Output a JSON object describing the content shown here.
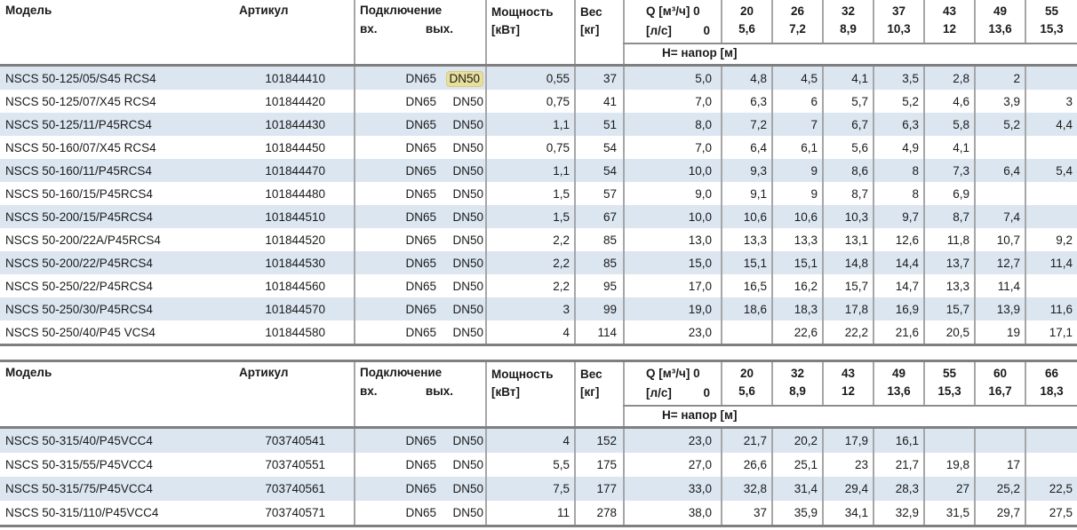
{
  "colors": {
    "stripe": "#dce6f1",
    "border-thick": "#7f7f7f",
    "border-mid": "#8c8c8c",
    "border-thin": "#a6a6a6",
    "highlight": "#e8df9c",
    "highlight-border": "#d8cb80",
    "text": "#1a1a1a"
  },
  "labels": {
    "model": "Модель",
    "article": "Артикул",
    "connection": "Подключение",
    "inlet": "вх.",
    "outlet": "вых.",
    "power_line1": "Мощность",
    "power_line2": "[кВт]",
    "weight_line1": "Вес",
    "weight_line2": "[кг]",
    "q_line1": "Q [м³/ч] 0",
    "q_ls": "[л/с]",
    "q_zero": "0",
    "head_band": "H= напор [м]"
  },
  "table1": {
    "flow_m3h": [
      "20",
      "26",
      "32",
      "37",
      "43",
      "49",
      "55"
    ],
    "flow_ls": [
      "5,6",
      "7,2",
      "8,9",
      "10,3",
      "12",
      "13,6",
      "15,3"
    ],
    "rows": [
      {
        "model": "NSCS 50-125/05/S45 RCS4",
        "article": "101844410",
        "inlet": "DN65",
        "outlet": "DN50",
        "outlet_highlighted": true,
        "power": "0,55",
        "weight": "37",
        "head": [
          "5,0",
          "4,8",
          "4,5",
          "4,1",
          "3,5",
          "2,8",
          "2",
          ""
        ]
      },
      {
        "model": "NSCS 50-125/07/X45 RCS4",
        "article": "101844420",
        "inlet": "DN65",
        "outlet": "DN50",
        "power": "0,75",
        "weight": "41",
        "head": [
          "7,0",
          "6,3",
          "6",
          "5,7",
          "5,2",
          "4,6",
          "3,9",
          "3"
        ]
      },
      {
        "model": "NSCS 50-125/11/P45RCS4",
        "article": "101844430",
        "inlet": "DN65",
        "outlet": "DN50",
        "power": "1,1",
        "weight": "51",
        "head": [
          "8,0",
          "7,2",
          "7",
          "6,7",
          "6,3",
          "5,8",
          "5,2",
          "4,4"
        ]
      },
      {
        "model": "NSCS 50-160/07/X45 RCS4",
        "article": "101844450",
        "inlet": "DN65",
        "outlet": "DN50",
        "power": "0,75",
        "weight": "54",
        "head": [
          "7,0",
          "6,4",
          "6,1",
          "5,6",
          "4,9",
          "4,1",
          "",
          ""
        ]
      },
      {
        "model": "NSCS 50-160/11/P45RCS4",
        "article": "101844470",
        "inlet": "DN65",
        "outlet": "DN50",
        "power": "1,1",
        "weight": "54",
        "head": [
          "10,0",
          "9,3",
          "9",
          "8,6",
          "8",
          "7,3",
          "6,4",
          "5,4"
        ]
      },
      {
        "model": "NSCS 50-160/15/P45RCS4",
        "article": "101844480",
        "inlet": "DN65",
        "outlet": "DN50",
        "power": "1,5",
        "weight": "57",
        "head": [
          "9,0",
          "9,1",
          "9",
          "8,7",
          "8",
          "6,9",
          "",
          ""
        ]
      },
      {
        "model": "NSCS 50-200/15/P45RCS4",
        "article": "101844510",
        "inlet": "DN65",
        "outlet": "DN50",
        "power": "1,5",
        "weight": "67",
        "head": [
          "10,0",
          "10,6",
          "10,6",
          "10,3",
          "9,7",
          "8,7",
          "7,4",
          ""
        ]
      },
      {
        "model": "NSCS 50-200/22A/P45RCS4",
        "article": "101844520",
        "inlet": "DN65",
        "outlet": "DN50",
        "power": "2,2",
        "weight": "85",
        "head": [
          "13,0",
          "13,3",
          "13,3",
          "13,1",
          "12,6",
          "11,8",
          "10,7",
          "9,2"
        ]
      },
      {
        "model": "NSCS 50-200/22/P45RCS4",
        "article": "101844530",
        "inlet": "DN65",
        "outlet": "DN50",
        "power": "2,2",
        "weight": "85",
        "head": [
          "15,0",
          "15,1",
          "15,1",
          "14,8",
          "14,4",
          "13,7",
          "12,7",
          "11,4"
        ]
      },
      {
        "model": "NSCS 50-250/22/P45RCS4",
        "article": "101844560",
        "inlet": "DN65",
        "outlet": "DN50",
        "power": "2,2",
        "weight": "95",
        "head": [
          "17,0",
          "16,5",
          "16,2",
          "15,7",
          "14,7",
          "13,3",
          "11,4",
          ""
        ]
      },
      {
        "model": "NSCS 50-250/30/P45RCS4",
        "article": "101844570",
        "inlet": "DN65",
        "outlet": "DN50",
        "power": "3",
        "weight": "99",
        "head": [
          "19,0",
          "18,6",
          "18,3",
          "17,8",
          "16,9",
          "15,7",
          "13,9",
          "11,6"
        ]
      },
      {
        "model": "NSCS 50-250/40/P45 VCS4",
        "article": "101844580",
        "inlet": "DN65",
        "outlet": "DN50",
        "power": "4",
        "weight": "114",
        "head": [
          "23,0",
          "",
          "22,6",
          "22,2",
          "21,6",
          "20,5",
          "19",
          "17,1"
        ]
      }
    ]
  },
  "table2": {
    "flow_m3h": [
      "20",
      "32",
      "43",
      "49",
      "55",
      "60",
      "66"
    ],
    "flow_ls": [
      "5,6",
      "8,9",
      "12",
      "13,6",
      "15,3",
      "16,7",
      "18,3"
    ],
    "rows": [
      {
        "model": "NSCS 50-315/40/P45VCC4",
        "article": "703740541",
        "inlet": "DN65",
        "outlet": "DN50",
        "power": "4",
        "weight": "152",
        "head": [
          "23,0",
          "21,7",
          "20,2",
          "17,9",
          "16,1",
          "",
          "",
          ""
        ]
      },
      {
        "model": "NSCS 50-315/55/P45VCC4",
        "article": "703740551",
        "inlet": "DN65",
        "outlet": "DN50",
        "power": "5,5",
        "weight": "175",
        "head": [
          "27,0",
          "26,6",
          "25,1",
          "23",
          "21,7",
          "19,8",
          "17",
          ""
        ]
      },
      {
        "model": "NSCS 50-315/75/P45VCC4",
        "article": "703740561",
        "inlet": "DN65",
        "outlet": "DN50",
        "power": "7,5",
        "weight": "177",
        "head": [
          "33,0",
          "32,8",
          "31,4",
          "29,4",
          "28,3",
          "27",
          "25,2",
          "22,5"
        ]
      },
      {
        "model": "NSCS 50-315/110/P45VCC4",
        "article": "703740571",
        "inlet": "DN65",
        "outlet": "DN50",
        "power": "11",
        "weight": "278",
        "head": [
          "38,0",
          "37",
          "35,9",
          "34,1",
          "32,9",
          "31,5",
          "29,7",
          "27,5"
        ]
      }
    ]
  }
}
